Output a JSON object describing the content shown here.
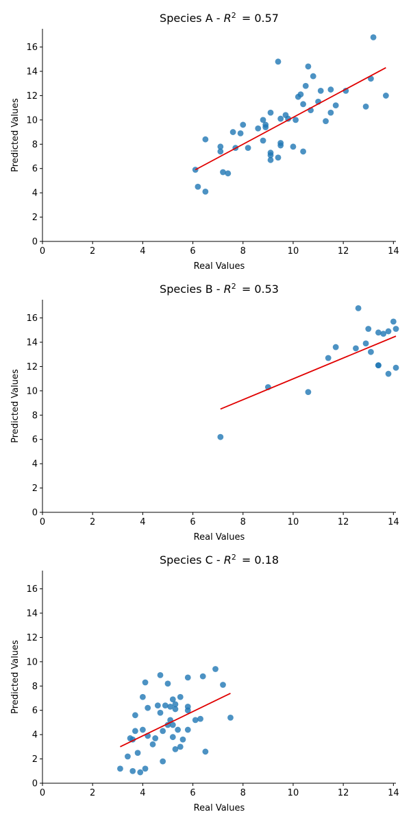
{
  "chart_data": [
    {
      "type": "scatter",
      "title": "Species A - R² = 0.57",
      "title_main": "Species A - ",
      "r2_text": "= 0.57",
      "xlabel": "Real Values",
      "ylabel": "Predicted Values",
      "xlim": [
        0,
        14.1
      ],
      "ylim": [
        0,
        17.5
      ],
      "xticks": [
        "0",
        "2",
        "4",
        "6",
        "8",
        "10",
        "12",
        "14"
      ],
      "yticks": [
        "0",
        "2",
        "4",
        "6",
        "8",
        "10",
        "12",
        "14",
        "16"
      ],
      "fit_line": {
        "x": [
          6.1,
          13.7
        ],
        "y": [
          5.9,
          14.3
        ]
      },
      "points": [
        [
          6.1,
          5.9
        ],
        [
          6.2,
          4.5
        ],
        [
          6.5,
          4.1
        ],
        [
          6.5,
          8.4
        ],
        [
          7.1,
          7.4
        ],
        [
          7.1,
          7.8
        ],
        [
          7.2,
          5.7
        ],
        [
          7.4,
          5.6
        ],
        [
          7.6,
          9.0
        ],
        [
          7.7,
          7.7
        ],
        [
          7.9,
          8.9
        ],
        [
          8.0,
          9.6
        ],
        [
          8.2,
          7.7
        ],
        [
          8.6,
          9.3
        ],
        [
          8.8,
          8.3
        ],
        [
          8.8,
          10.0
        ],
        [
          8.9,
          9.6
        ],
        [
          8.9,
          9.4
        ],
        [
          9.1,
          10.6
        ],
        [
          9.1,
          7.3
        ],
        [
          9.1,
          7.1
        ],
        [
          9.1,
          6.7
        ],
        [
          9.4,
          6.9
        ],
        [
          9.4,
          14.8
        ],
        [
          9.5,
          10.1
        ],
        [
          9.5,
          8.1
        ],
        [
          9.5,
          7.9
        ],
        [
          9.7,
          10.4
        ],
        [
          9.8,
          10.1
        ],
        [
          10.0,
          7.8
        ],
        [
          10.1,
          10.0
        ],
        [
          10.2,
          11.9
        ],
        [
          10.3,
          12.1
        ],
        [
          10.4,
          11.3
        ],
        [
          10.4,
          7.4
        ],
        [
          10.5,
          12.8
        ],
        [
          10.6,
          14.4
        ],
        [
          10.7,
          10.8
        ],
        [
          10.8,
          13.6
        ],
        [
          11.0,
          11.5
        ],
        [
          11.1,
          12.4
        ],
        [
          11.3,
          9.9
        ],
        [
          11.5,
          10.6
        ],
        [
          11.5,
          12.5
        ],
        [
          11.7,
          11.2
        ],
        [
          12.1,
          12.4
        ],
        [
          12.9,
          11.1
        ],
        [
          13.1,
          13.4
        ],
        [
          13.2,
          16.8
        ],
        [
          13.7,
          12.0
        ]
      ]
    },
    {
      "type": "scatter",
      "title": "Species B - R² = 0.53",
      "title_main": "Species B - ",
      "r2_text": "= 0.53",
      "xlabel": "Real Values",
      "ylabel": "Predicted Values",
      "xlim": [
        0,
        14.1
      ],
      "ylim": [
        0,
        17.5
      ],
      "xticks": [
        "0",
        "2",
        "4",
        "6",
        "8",
        "10",
        "12",
        "14"
      ],
      "yticks": [
        "0",
        "2",
        "4",
        "6",
        "8",
        "10",
        "12",
        "14",
        "16"
      ],
      "fit_line": {
        "x": [
          7.1,
          14.1
        ],
        "y": [
          8.5,
          14.5
        ]
      },
      "points": [
        [
          7.1,
          6.2
        ],
        [
          9.0,
          10.3
        ],
        [
          10.6,
          9.9
        ],
        [
          11.4,
          12.7
        ],
        [
          11.7,
          13.6
        ],
        [
          12.5,
          13.5
        ],
        [
          12.6,
          16.8
        ],
        [
          12.9,
          13.9
        ],
        [
          13.0,
          15.1
        ],
        [
          13.1,
          13.2
        ],
        [
          13.4,
          12.1
        ],
        [
          13.4,
          12.1
        ],
        [
          13.4,
          14.8
        ],
        [
          13.6,
          14.7
        ],
        [
          13.8,
          11.4
        ],
        [
          13.8,
          14.9
        ],
        [
          14.0,
          15.7
        ],
        [
          14.1,
          15.1
        ],
        [
          14.1,
          11.9
        ]
      ]
    },
    {
      "type": "scatter",
      "title": "Species C - R² = 0.18",
      "title_main": "Species C - ",
      "r2_text": "= 0.18",
      "xlabel": "Real Values",
      "ylabel": "Predicted Values",
      "xlim": [
        0,
        14.1
      ],
      "ylim": [
        0,
        17.5
      ],
      "xticks": [
        "0",
        "2",
        "4",
        "6",
        "8",
        "10",
        "12",
        "14"
      ],
      "yticks": [
        "0",
        "2",
        "4",
        "6",
        "8",
        "10",
        "12",
        "14",
        "16"
      ],
      "fit_line": {
        "x": [
          3.1,
          7.5
        ],
        "y": [
          3.0,
          7.4
        ]
      },
      "points": [
        [
          3.1,
          1.2
        ],
        [
          3.4,
          2.2
        ],
        [
          3.5,
          3.7
        ],
        [
          3.6,
          3.6
        ],
        [
          3.6,
          1.0
        ],
        [
          3.7,
          4.3
        ],
        [
          3.7,
          5.6
        ],
        [
          3.8,
          2.5
        ],
        [
          3.9,
          0.9
        ],
        [
          4.0,
          7.1
        ],
        [
          4.0,
          4.4
        ],
        [
          4.1,
          8.3
        ],
        [
          4.1,
          1.2
        ],
        [
          4.2,
          6.2
        ],
        [
          4.2,
          3.9
        ],
        [
          4.4,
          3.2
        ],
        [
          4.5,
          3.7
        ],
        [
          4.6,
          6.4
        ],
        [
          4.7,
          8.9
        ],
        [
          4.7,
          5.8
        ],
        [
          4.8,
          4.3
        ],
        [
          4.8,
          1.8
        ],
        [
          4.9,
          6.4
        ],
        [
          5.0,
          8.2
        ],
        [
          5.0,
          4.8
        ],
        [
          5.1,
          5.2
        ],
        [
          5.1,
          6.3
        ],
        [
          5.2,
          6.9
        ],
        [
          5.2,
          3.8
        ],
        [
          5.2,
          4.8
        ],
        [
          5.3,
          6.5
        ],
        [
          5.3,
          6.1
        ],
        [
          5.3,
          2.8
        ],
        [
          5.4,
          4.4
        ],
        [
          5.5,
          3.0
        ],
        [
          5.5,
          7.1
        ],
        [
          5.6,
          3.6
        ],
        [
          5.8,
          6.0
        ],
        [
          5.8,
          6.3
        ],
        [
          5.8,
          4.4
        ],
        [
          5.8,
          8.7
        ],
        [
          6.1,
          5.2
        ],
        [
          6.3,
          5.3
        ],
        [
          6.4,
          8.8
        ],
        [
          6.5,
          2.6
        ],
        [
          6.9,
          9.4
        ],
        [
          7.2,
          8.1
        ],
        [
          7.5,
          5.4
        ]
      ]
    }
  ]
}
